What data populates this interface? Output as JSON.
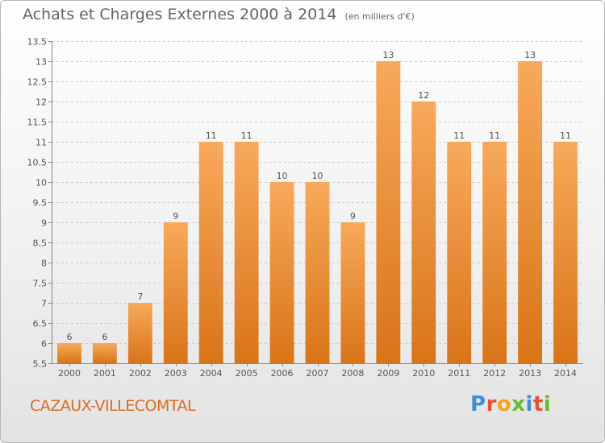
{
  "title": "Achats et Charges Externes 2000 à 2014",
  "unit_note": "(en milliers d'€)",
  "commune": "CAZAUX-VILLECOMTAL",
  "logo": {
    "text": "Proxiti",
    "letter_colors": [
      "#3f8fd6",
      "#e8542a",
      "#f2a51f",
      "#6bb833",
      "#3f8fd6",
      "#e8542a",
      "#6bb833"
    ]
  },
  "colors": {
    "bar_light": "#f7a95a",
    "bar_dark": "#d97418",
    "grid": "#cccccc",
    "commune_text": "#e06b1e"
  },
  "chart_data": {
    "type": "bar",
    "title": "Achats et Charges Externes 2000 à 2014",
    "subtitle": "(en milliers d'€)",
    "categories": [
      "2000",
      "2001",
      "2002",
      "2003",
      "2004",
      "2005",
      "2006",
      "2007",
      "2008",
      "2009",
      "2010",
      "2011",
      "2012",
      "2013",
      "2014"
    ],
    "values": [
      6,
      6,
      7,
      9,
      11,
      11,
      10,
      10,
      9,
      13,
      12,
      11,
      11,
      13,
      11
    ],
    "value_labels": [
      "6",
      "6",
      "7",
      "9",
      "11",
      "11",
      "10",
      "10",
      "9",
      "13",
      "12",
      "11",
      "11",
      "13",
      "11"
    ],
    "ylim": [
      5.5,
      13.5
    ],
    "yticks": [
      5.5,
      6,
      6.5,
      7,
      7.5,
      8,
      8.5,
      9,
      9.5,
      10,
      10.5,
      11,
      11.5,
      12,
      12.5,
      13,
      13.5
    ],
    "ytick_labels": [
      "5.5",
      "6",
      "6.5",
      "7",
      "7.5",
      "8",
      "8.5",
      "9",
      "9.5",
      "10",
      "10.5",
      "11",
      "11.5",
      "12",
      "12.5",
      "13",
      "13.5"
    ],
    "xlabel": "",
    "ylabel": "",
    "grid": "horizontal dashed",
    "legend": "none"
  }
}
